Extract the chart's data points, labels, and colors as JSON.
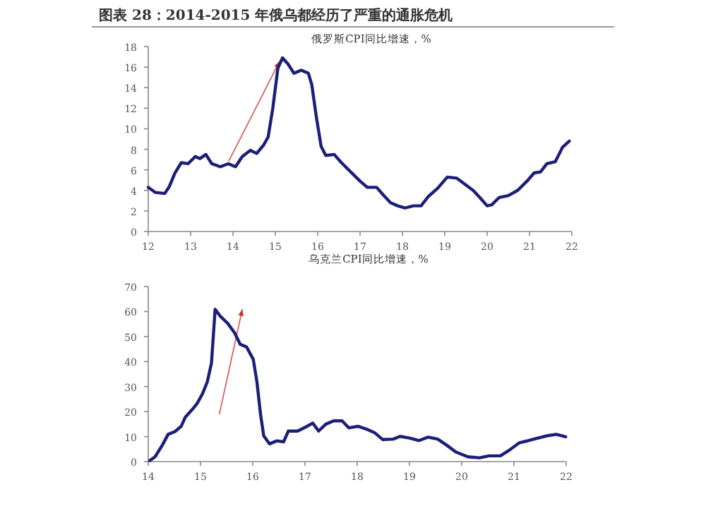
{
  "chart_data": [
    {
      "type": "line",
      "title": "俄罗斯CPI同比增速，%",
      "annotations": [
        "图表 28：2014-2015 年俄乌都经历了严重的通胀危机"
      ],
      "xlim": [
        12,
        22
      ],
      "xticks": [
        12,
        13,
        14,
        15,
        16,
        17,
        18,
        19,
        20,
        21,
        22
      ],
      "ylim": [
        0,
        18
      ],
      "yticks": [
        0,
        2,
        4,
        6,
        8,
        10,
        12,
        14,
        16,
        18
      ],
      "series": [
        {
          "color": "#1c1f78",
          "x": [
            12.0,
            12.17,
            12.39,
            12.5,
            12.63,
            12.78,
            12.94,
            13.11,
            13.22,
            13.36,
            13.5,
            13.7,
            13.89,
            14.06,
            14.22,
            14.41,
            14.56,
            14.72,
            14.83,
            14.94,
            15.06,
            15.17,
            15.3,
            15.44,
            15.61,
            15.78,
            15.86,
            15.97,
            16.08,
            16.19,
            16.39,
            16.56,
            16.78,
            17.0,
            17.17,
            17.39,
            17.56,
            17.72,
            17.89,
            18.06,
            18.26,
            18.44,
            18.61,
            18.83,
            19.06,
            19.28,
            19.44,
            19.67,
            19.83,
            20.0,
            20.11,
            20.28,
            20.5,
            20.72,
            20.94,
            21.11,
            21.26,
            21.41,
            21.61,
            21.78,
            21.94
          ],
          "values": [
            4.3,
            3.8,
            3.7,
            4.4,
            5.7,
            6.7,
            6.6,
            7.3,
            7.1,
            7.5,
            6.6,
            6.3,
            6.6,
            6.3,
            7.3,
            7.9,
            7.6,
            8.4,
            9.2,
            12.0,
            15.9,
            16.9,
            16.3,
            15.4,
            15.7,
            15.4,
            14.3,
            11.1,
            8.3,
            7.4,
            7.5,
            6.7,
            5.8,
            4.9,
            4.3,
            4.3,
            3.5,
            2.8,
            2.5,
            2.3,
            2.5,
            2.5,
            3.4,
            4.2,
            5.3,
            5.2,
            4.7,
            4.0,
            3.3,
            2.5,
            2.6,
            3.3,
            3.5,
            4.0,
            4.9,
            5.7,
            5.8,
            6.6,
            6.8,
            8.2,
            8.8
          ]
        }
      ]
    },
    {
      "type": "line",
      "title": "乌克兰CPI同比增速，%",
      "xlim": [
        14,
        22
      ],
      "xticks": [
        14,
        15,
        16,
        17,
        18,
        19,
        20,
        21,
        22
      ],
      "ylim": [
        0,
        70
      ],
      "yticks": [
        0,
        10,
        20,
        30,
        40,
        50,
        60,
        70
      ],
      "series": [
        {
          "color": "#1c1f78",
          "x": [
            14.03,
            14.13,
            14.27,
            14.38,
            14.51,
            14.63,
            14.71,
            14.85,
            14.94,
            15.04,
            15.13,
            15.21,
            15.28,
            15.38,
            15.52,
            15.65,
            15.76,
            15.88,
            16.01,
            16.08,
            16.15,
            16.21,
            16.32,
            16.46,
            16.59,
            16.68,
            16.86,
            17.04,
            17.15,
            17.26,
            17.4,
            17.55,
            17.71,
            17.84,
            18.02,
            18.2,
            18.33,
            18.49,
            18.69,
            18.82,
            19.0,
            19.18,
            19.36,
            19.54,
            19.71,
            19.89,
            20.12,
            20.34,
            20.52,
            20.74,
            20.92,
            21.1,
            21.28,
            21.46,
            21.63,
            21.81,
            21.99
          ],
          "values": [
            0.4,
            1.9,
            6.6,
            10.9,
            12.0,
            14.1,
            17.8,
            21,
            23.4,
            27.2,
            31.9,
            39.4,
            60.9,
            58.1,
            55.3,
            51.6,
            46.9,
            45.9,
            40.9,
            31.9,
            18.8,
            10.3,
            7.1,
            8.3,
            7.9,
            12.2,
            12.2,
            14.1,
            15.4,
            12.2,
            15,
            16.3,
            16.3,
            13.5,
            14.1,
            12.8,
            11.6,
            8.8,
            9,
            10.1,
            9.4,
            8.4,
            9.8,
            9,
            6.6,
            3.8,
            1.9,
            1.5,
            2.3,
            2.3,
            4.7,
            7.5,
            8.4,
            9.4,
            10.3,
            10.9,
            9.9
          ]
        }
      ]
    }
  ]
}
